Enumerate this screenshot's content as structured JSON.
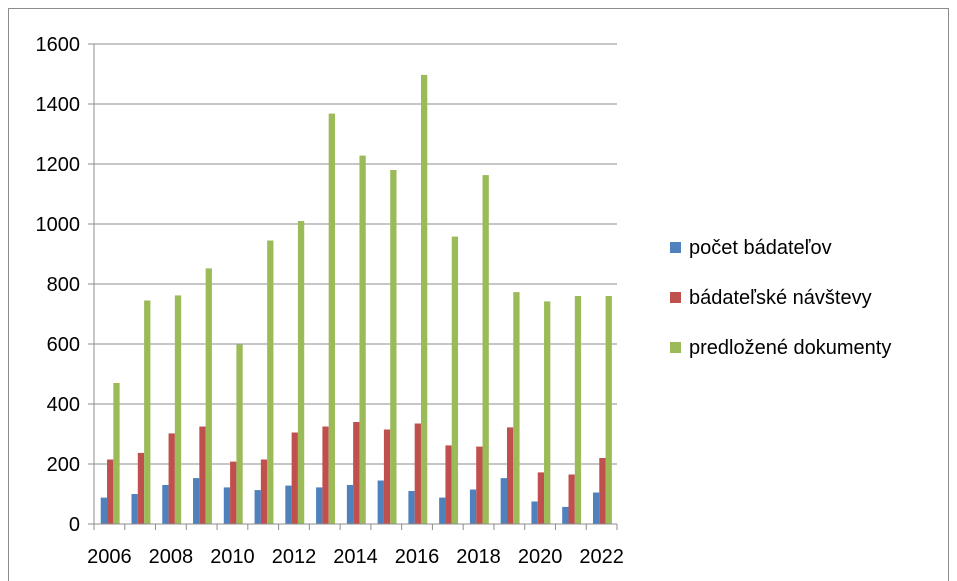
{
  "chart_data": {
    "type": "bar",
    "title": "",
    "xlabel": "",
    "ylabel": "",
    "ylim": [
      0,
      1600
    ],
    "yticks": [
      0,
      200,
      400,
      600,
      800,
      1000,
      1200,
      1400,
      1600
    ],
    "categories": [
      "2006",
      "2007",
      "2008",
      "2009",
      "2010",
      "2011",
      "2012",
      "2013",
      "2014",
      "2015",
      "2016",
      "2017",
      "2018",
      "2019",
      "2020",
      "2021",
      "2022"
    ],
    "x_tick_labels": [
      "2006",
      "2008",
      "2010",
      "2012",
      "2014",
      "2016",
      "2018",
      "2020",
      "2022"
    ],
    "grid": true,
    "legend_position": "right",
    "series": [
      {
        "name": "počet bádateľov",
        "color": "#4f81bd",
        "values": [
          88,
          100,
          130,
          153,
          122,
          113,
          128,
          122,
          130,
          145,
          110,
          88,
          115,
          153,
          75,
          57,
          105
        ]
      },
      {
        "name": "bádateľské návštevy",
        "color": "#c0504d",
        "values": [
          215,
          237,
          302,
          325,
          208,
          215,
          305,
          325,
          340,
          315,
          335,
          262,
          258,
          322,
          172,
          165,
          220
        ]
      },
      {
        "name": "predložené dokumenty",
        "color": "#9bbb59",
        "values": [
          470,
          745,
          762,
          852,
          598,
          945,
          1010,
          1368,
          1228,
          1180,
          1497,
          958,
          1163,
          773,
          742,
          760,
          760
        ]
      }
    ]
  }
}
